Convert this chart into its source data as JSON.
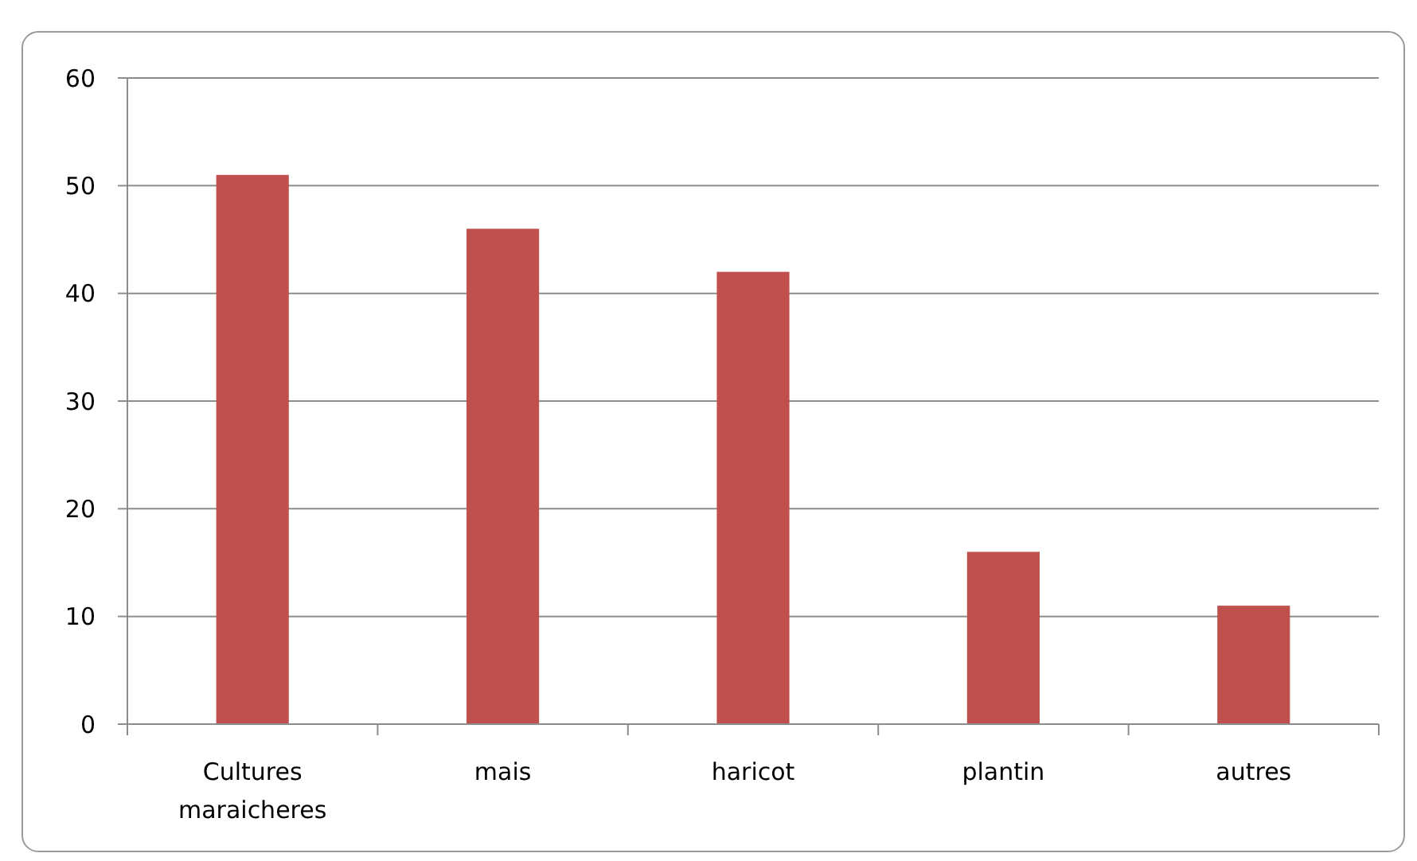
{
  "chart_data": {
    "type": "bar",
    "categories": [
      "Cultures maraicheres",
      "mais",
      "haricot",
      "plantin",
      "autres"
    ],
    "values": [
      51,
      46,
      42,
      16,
      11
    ],
    "color": "#c0504d",
    "ylim": [
      0,
      60
    ],
    "yticks": [
      0,
      10,
      20,
      30,
      40,
      50,
      60
    ],
    "grid": "y"
  }
}
